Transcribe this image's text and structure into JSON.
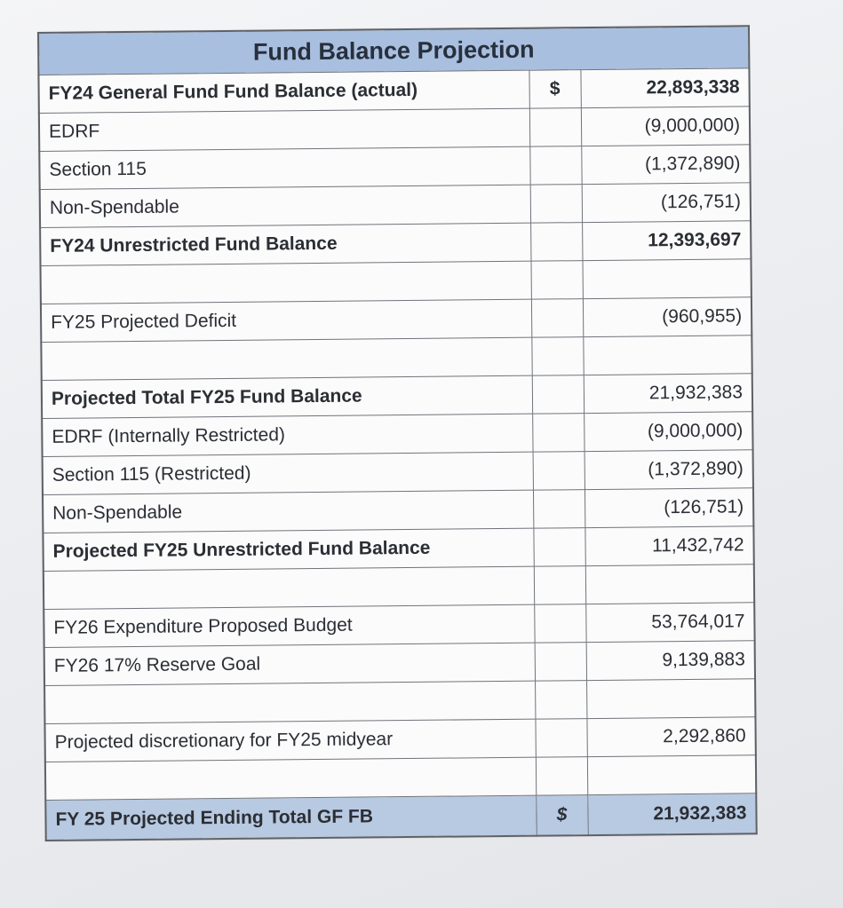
{
  "title": "Fund Balance Projection",
  "rows": [
    {
      "label": "FY24 General Fund Fund Balance (actual)",
      "symbol": "$",
      "value": "22,893,338",
      "bold": true
    },
    {
      "label": "EDRF",
      "symbol": "",
      "value": "(9,000,000)",
      "bold": false
    },
    {
      "label": "Section 115",
      "symbol": "",
      "value": "(1,372,890)",
      "bold": false
    },
    {
      "label": "Non-Spendable",
      "symbol": "",
      "value": "(126,751)",
      "bold": false
    },
    {
      "label": "FY24 Unrestricted Fund Balance",
      "symbol": "",
      "value": "12,393,697",
      "bold": true
    },
    {
      "label": "FY25 Projected Deficit",
      "symbol": "",
      "value": "(960,955)",
      "bold": false
    },
    {
      "label": "Projected Total FY25 Fund Balance",
      "symbol": "",
      "value": "21,932,383",
      "bold": false
    },
    {
      "label": "EDRF (Internally Restricted)",
      "symbol": "",
      "value": "(9,000,000)",
      "bold": false
    },
    {
      "label": "Section 115 (Restricted)",
      "symbol": "",
      "value": "(1,372,890)",
      "bold": false
    },
    {
      "label": "Non-Spendable",
      "symbol": "",
      "value": "(126,751)",
      "bold": false
    },
    {
      "label": "Projected FY25 Unrestricted Fund Balance",
      "symbol": "",
      "value": "11,432,742",
      "bold": false
    },
    {
      "label": "FY26 Expenditure Proposed Budget",
      "symbol": "",
      "value": "53,764,017",
      "bold": false
    },
    {
      "label": "FY26 17% Reserve Goal",
      "symbol": "",
      "value": "9,139,883",
      "bold": false
    },
    {
      "label": "Projected discretionary for FY25 midyear",
      "symbol": "",
      "value": "2,292,860",
      "bold": false
    },
    {
      "label": "FY 25 Projected Ending Total GF FB",
      "symbol": "$",
      "value": "21,932,383",
      "bold": true
    }
  ]
}
